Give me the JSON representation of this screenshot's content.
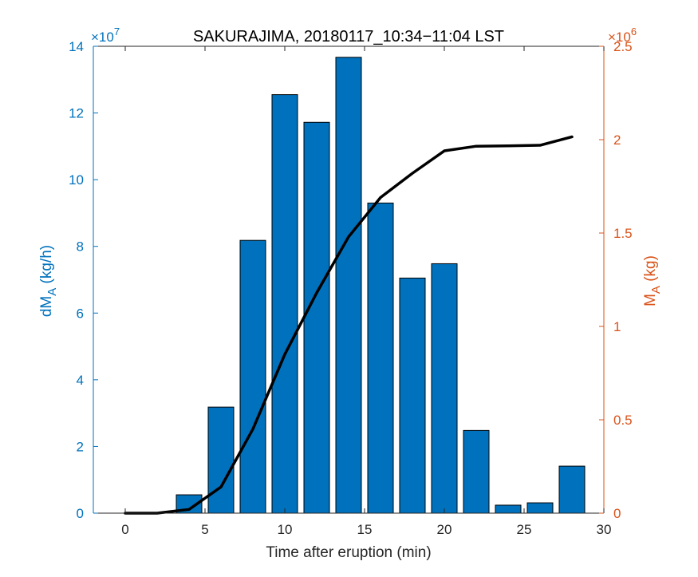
{
  "chart_data": {
    "type": "bar+line",
    "title": "SAKURAJIMA, 20180117_10:34−11:04 LST",
    "xlabel": "Time after eruption (min)",
    "ylabel_left": {
      "main": "dM",
      "sub": "A",
      "unit": " (kg/h)"
    },
    "ylabel_right": {
      "main": "M",
      "sub": "A",
      "unit": " (kg)"
    },
    "xlim": [
      -2,
      30
    ],
    "ylim_left": [
      0,
      14
    ],
    "ylim_right": [
      0,
      2.5
    ],
    "left_multiplier": {
      "base": "×10",
      "exponent": "7"
    },
    "right_multiplier": {
      "base": "×10",
      "exponent": "6"
    },
    "x_ticks": [
      "0",
      "5",
      "10",
      "15",
      "20",
      "25",
      "30"
    ],
    "left_ticks": [
      "0",
      "2",
      "4",
      "6",
      "8",
      "10",
      "12",
      "14"
    ],
    "right_ticks": [
      "0",
      "0.5",
      "1",
      "1.5",
      "2",
      "2.5"
    ],
    "grid": false,
    "bars": {
      "color": "#0072BD",
      "x": [
        0,
        2,
        4,
        6,
        8,
        10,
        12,
        14,
        16,
        18,
        20,
        22,
        24,
        26,
        28
      ],
      "values": [
        0,
        0,
        0.55,
        3.18,
        8.18,
        12.55,
        11.72,
        13.67,
        9.3,
        7.05,
        7.48,
        2.48,
        0.24,
        0.31,
        1.41
      ]
    },
    "line": {
      "color": "#000000",
      "x": [
        0,
        2,
        4,
        6,
        8,
        10,
        12,
        14,
        16,
        18,
        20,
        22,
        24,
        26,
        28
      ],
      "values": [
        0,
        0,
        0.02,
        0.14,
        0.45,
        0.85,
        1.18,
        1.48,
        1.69,
        1.82,
        1.94,
        1.965,
        1.967,
        1.97,
        2.015
      ]
    }
  }
}
